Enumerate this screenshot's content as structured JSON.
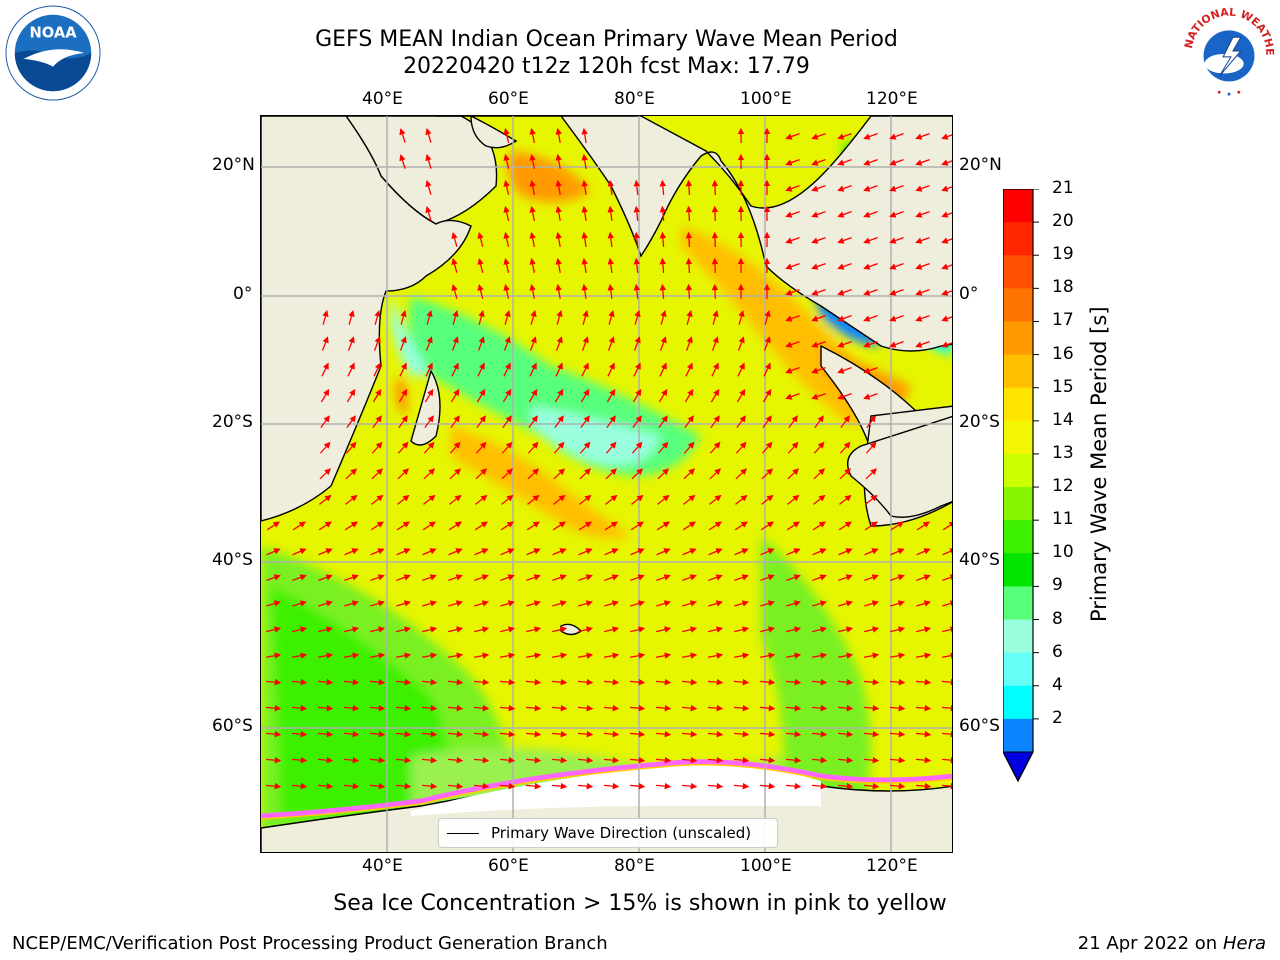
{
  "title": {
    "line1": "GEFS MEAN Indian Ocean Primary Wave Mean Period",
    "line2": "20220420 t12z 120h fcst   Max: 17.79"
  },
  "map": {
    "lon_ticks": [
      "40°E",
      "60°E",
      "80°E",
      "100°E",
      "120°E"
    ],
    "lat_ticks": [
      "20°N",
      "0°",
      "20°S",
      "40°S",
      "60°S"
    ],
    "lon_values": [
      40,
      60,
      80,
      100,
      120
    ],
    "lat_values": [
      20,
      0,
      -20,
      -40,
      -60
    ],
    "extent": {
      "lon": [
        20,
        130
      ],
      "lat": [
        -70,
        28
      ]
    },
    "land_color": "#efeedd",
    "ice_color": "#ffffff",
    "grid_color": "#b0b0b0",
    "arrow_color": "#ff0000"
  },
  "legend": {
    "label": "Primary Wave Direction (unscaled)"
  },
  "colorbar": {
    "title": "Primary Wave Mean Period [s]",
    "labels": [
      "21",
      "20",
      "19",
      "18",
      "17",
      "16",
      "15",
      "14",
      "13",
      "12",
      "11",
      "10",
      "9",
      "8",
      "6",
      "4",
      "2"
    ],
    "colors_top_to_bottom": [
      "#ff0000",
      "#ff2600",
      "#ff4f00",
      "#ff7400",
      "#ff9a00",
      "#ffbf00",
      "#ffe400",
      "#f4f500",
      "#ccff00",
      "#87f500",
      "#3cf000",
      "#00e400",
      "#58ff7c",
      "#99ffdf",
      "#66fff7",
      "#00ffff",
      "#0b85ff"
    ],
    "extend_color": "#0000e0"
  },
  "footer": {
    "note": "Sea Ice Concentration > 15% is shown in pink to yellow",
    "credit_left": "NCEP/EMC/Verification Post Processing Product Generation Branch",
    "date": "21 Apr 2022 on ",
    "machine": "Hera"
  },
  "logos": {
    "left": {
      "icon": "noaa-logo",
      "text": "NOAA"
    },
    "right": {
      "icon": "nws-logo",
      "text": "NATIONAL WEATHER SERVICE"
    }
  }
}
